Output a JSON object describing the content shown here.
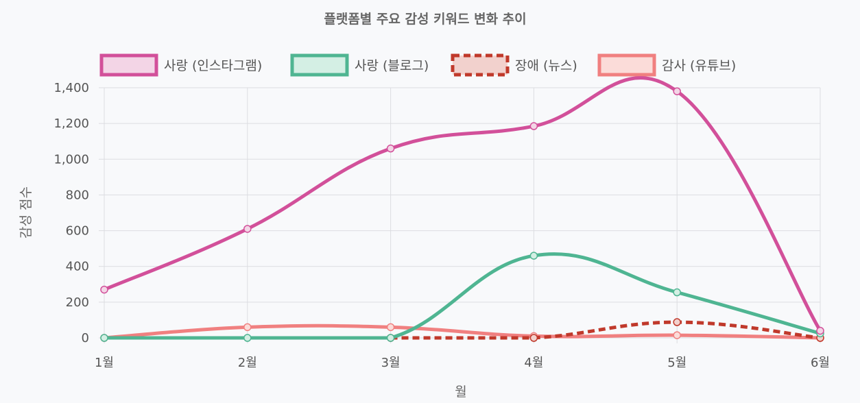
{
  "chart_data": {
    "type": "line",
    "title": "플랫폼별 주요 감성 키워드 변화 추이",
    "xlabel": "월",
    "ylabel": "감성 점수",
    "categories": [
      "1월",
      "2월",
      "3월",
      "4월",
      "5월",
      "6월"
    ],
    "ylim": [
      0,
      1400
    ],
    "yticks": [
      0,
      200,
      400,
      600,
      800,
      1000,
      1200,
      1400
    ],
    "ytick_labels": [
      "0",
      "200",
      "400",
      "600",
      "800",
      "1,000",
      "1,200",
      "1,400"
    ],
    "grid": true,
    "legend_position": "top",
    "series": [
      {
        "name": "사랑 (인스타그램)",
        "values": [
          270,
          610,
          1060,
          1185,
          1380,
          40
        ],
        "color": "#d2509a",
        "fill": "#f3d5e6",
        "dashed": false
      },
      {
        "name": "사랑 (블로그)",
        "values": [
          0,
          0,
          0,
          460,
          255,
          25
        ],
        "color": "#4fb592",
        "fill": "#d4efe4",
        "dashed": false
      },
      {
        "name": "장애 (뉴스)",
        "values": [
          null,
          null,
          0,
          0,
          88,
          0
        ],
        "color": "#c0392b",
        "fill": "#f2d1cd",
        "dashed": true
      },
      {
        "name": "감사 (유튜브)",
        "values": [
          0,
          60,
          60,
          10,
          15,
          0
        ],
        "color": "#f08080",
        "fill": "#fbdcd9",
        "dashed": false
      }
    ]
  }
}
